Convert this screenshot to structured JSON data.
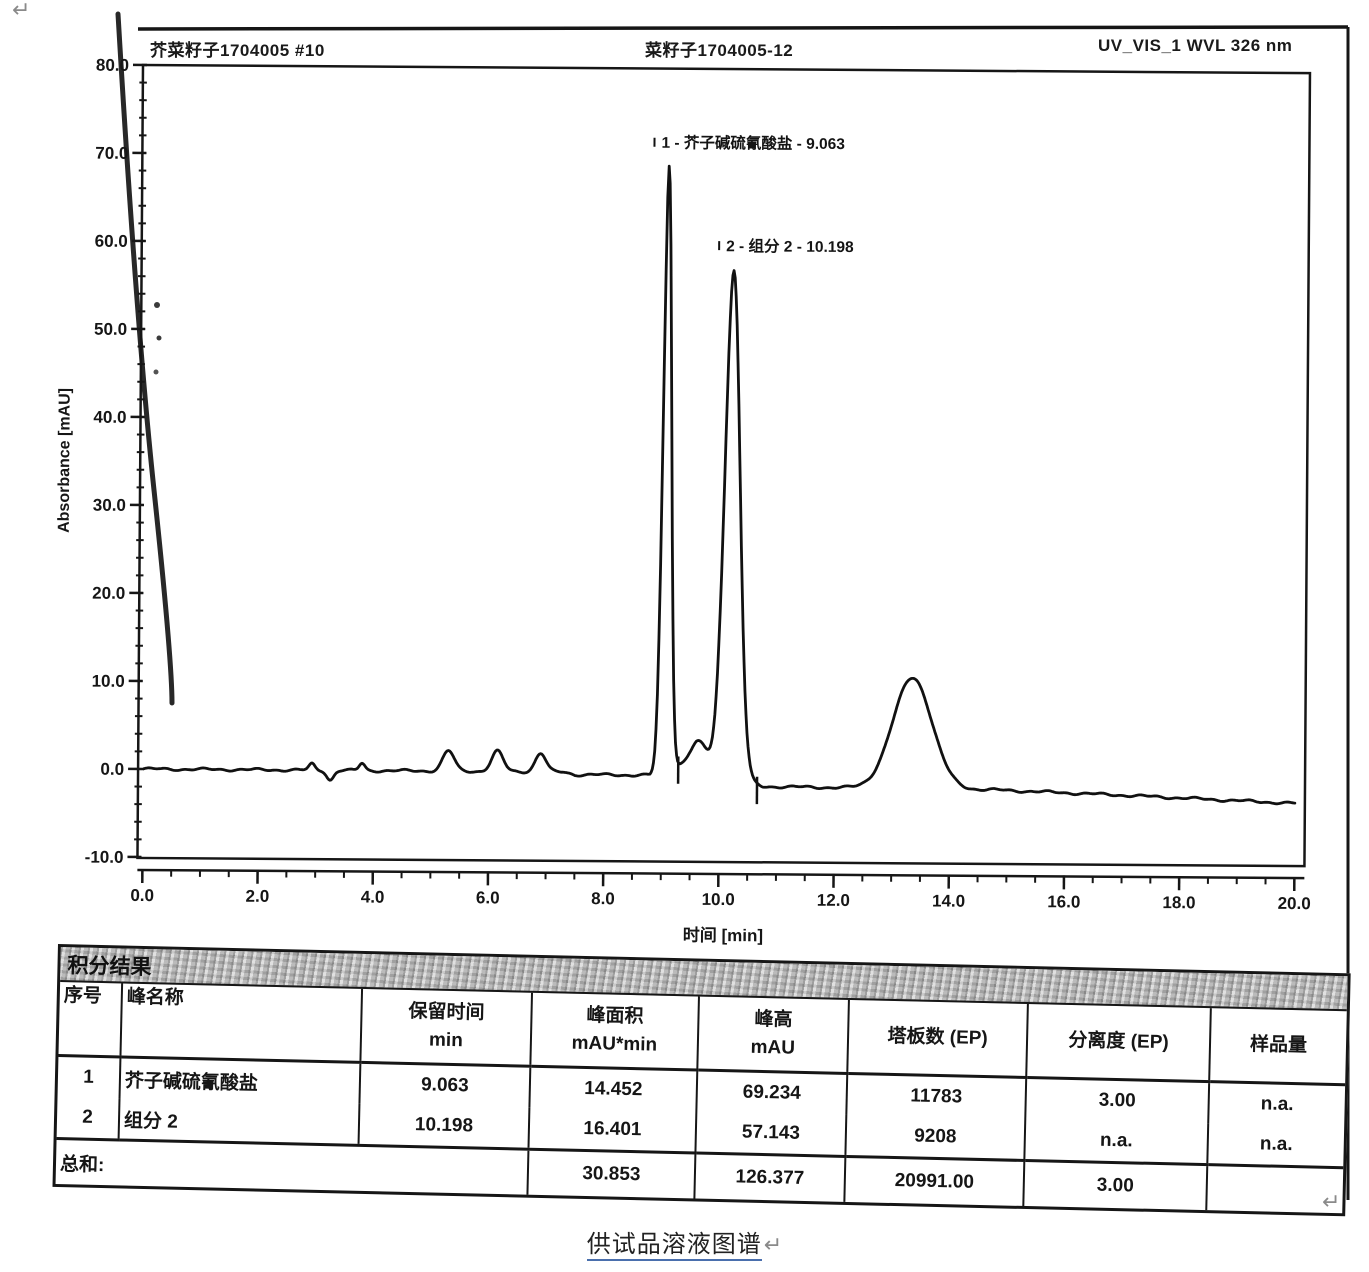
{
  "page": {
    "paragraph_mark": "↵"
  },
  "header": {
    "left": "芥菜籽子1704005 #10",
    "center": "菜籽子1704005-12",
    "right": "UV_VIS_1 WVL 326 nm"
  },
  "chart_data": {
    "type": "line",
    "title": "",
    "xlabel": "时间 [min]",
    "ylabel": "Absorbance [mAU]",
    "xlim": [
      0,
      20
    ],
    "ylim": [
      -10,
      80
    ],
    "grid": false,
    "x_major_tick_step": 2,
    "x_minor_tick_step": 0.5,
    "y_major_tick_step": 10,
    "y_minor_tick_step": 2,
    "x_tick_labels": [
      "0.0",
      "2.0",
      "4.0",
      "6.0",
      "8.0",
      "10.0",
      "12.0",
      "14.0",
      "16.0",
      "18.0",
      "20.0"
    ],
    "y_tick_labels": [
      "-10.0",
      "0.0",
      "10.0",
      "20.0",
      "30.0",
      "40.0",
      "50.0",
      "60.0",
      "70.0",
      "80.0"
    ],
    "peak_labels": [
      {
        "text": "1 - 芥子碱硫氰酸盐 - 9.063",
        "t": 9.063,
        "label_y_mAU": 71.0
      },
      {
        "text": "2 - 组分 2 - 10.198",
        "t": 10.198,
        "label_y_mAU": 59.3
      }
    ],
    "peaks": [
      {
        "center": 2.93,
        "height": 0.7,
        "sigma": 0.05
      },
      {
        "center": 3.25,
        "height": -1.1,
        "sigma": 0.06
      },
      {
        "center": 3.8,
        "height": 0.8,
        "sigma": 0.05
      },
      {
        "center": 5.3,
        "height": 2.3,
        "sigma": 0.1
      },
      {
        "center": 6.15,
        "height": 2.3,
        "sigma": 0.1
      },
      {
        "center": 6.9,
        "height": 2.1,
        "sigma": 0.09
      },
      {
        "center": 9.063,
        "height": 68.5,
        "sigma": 0.07
      },
      {
        "center": 9.65,
        "height": 2.6,
        "sigma": 0.15
      },
      {
        "center": 10.198,
        "height": 57.5,
        "sigma": 0.13
      },
      {
        "center": 13.35,
        "height": 12.6,
        "sigma": 0.34
      }
    ],
    "baseline_nodes": [
      [
        0,
        0
      ],
      [
        7.3,
        0
      ],
      [
        7.5,
        -0.3
      ],
      [
        8.8,
        -0.3
      ],
      [
        8.9,
        0.3
      ],
      [
        9.6,
        1.0
      ],
      [
        10.75,
        -1.5
      ],
      [
        14.8,
        -1.7
      ],
      [
        17,
        -2.2
      ],
      [
        20,
        -3.0
      ]
    ],
    "integration_marks": [
      {
        "t": 9.29
      },
      {
        "t": 10.66
      }
    ]
  },
  "table": {
    "title": "积分结果",
    "columns": [
      {
        "line1": "序号",
        "line2": ""
      },
      {
        "line1": "峰名称",
        "line2": ""
      },
      {
        "line1": "保留时间",
        "line2": "min"
      },
      {
        "line1": "峰面积",
        "line2": "mAU*min"
      },
      {
        "line1": "峰高",
        "line2": "mAU"
      },
      {
        "line1": "塔板数 (EP)",
        "line2": ""
      },
      {
        "line1": "分离度 (EP)",
        "line2": ""
      },
      {
        "line1": "样品量",
        "line2": ""
      }
    ],
    "rows": [
      [
        "1",
        "芥子碱硫氰酸盐",
        "9.063",
        "14.452",
        "69.234",
        "11783",
        "3.00",
        "n.a."
      ],
      [
        "2",
        "组分 2",
        "10.198",
        "16.401",
        "57.143",
        "9208",
        "n.a.",
        "n.a."
      ]
    ],
    "total": {
      "label": "总和:",
      "area": "30.853",
      "height": "126.377",
      "plates": "20991.00",
      "resolution": "3.00",
      "amount": ""
    }
  },
  "caption": "供试品溶液图谱"
}
